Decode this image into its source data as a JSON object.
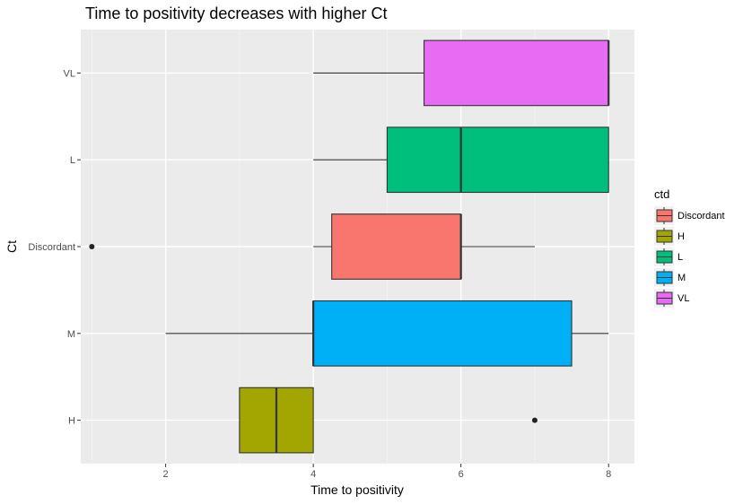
{
  "chart_data": {
    "type": "boxplot",
    "orientation": "horizontal",
    "title": "Time to positivity decreases with higher Ct",
    "xlabel": "Time to positivity",
    "ylabel": "Ct",
    "xlim": [
      0.85,
      8.35
    ],
    "x_ticks": [
      2,
      4,
      6,
      8
    ],
    "x_tick_labels": [
      "2",
      "4",
      "6",
      "8"
    ],
    "categories": [
      "H",
      "M",
      "Discordant",
      "L",
      "VL"
    ],
    "grid": true,
    "legend": {
      "title": "ctd",
      "placement": "right",
      "entries": [
        "Discordant",
        "H",
        "L",
        "M",
        "VL"
      ]
    },
    "series": [
      {
        "category": "VL",
        "color": "#E76BF3",
        "whisker_low": 4,
        "q1": 5.5,
        "median": 8,
        "q3": 8,
        "whisker_high": 8,
        "outliers": []
      },
      {
        "category": "L",
        "color": "#00BF7D",
        "whisker_low": 4,
        "q1": 5,
        "median": 6,
        "q3": 8,
        "whisker_high": 8,
        "outliers": []
      },
      {
        "category": "Discordant",
        "color": "#F8766D",
        "whisker_low": 4,
        "q1": 4.25,
        "median": 6,
        "q3": 6,
        "whisker_high": 7,
        "outliers": [
          1
        ]
      },
      {
        "category": "M",
        "color": "#00B0F6",
        "whisker_low": 2,
        "q1": 4,
        "median": 4,
        "q3": 7.5,
        "whisker_high": 8,
        "outliers": []
      },
      {
        "category": "H",
        "color": "#A3A500",
        "whisker_low": 3,
        "q1": 3,
        "median": 3.5,
        "q3": 4,
        "whisker_high": 4,
        "outliers": [
          7
        ]
      }
    ]
  }
}
